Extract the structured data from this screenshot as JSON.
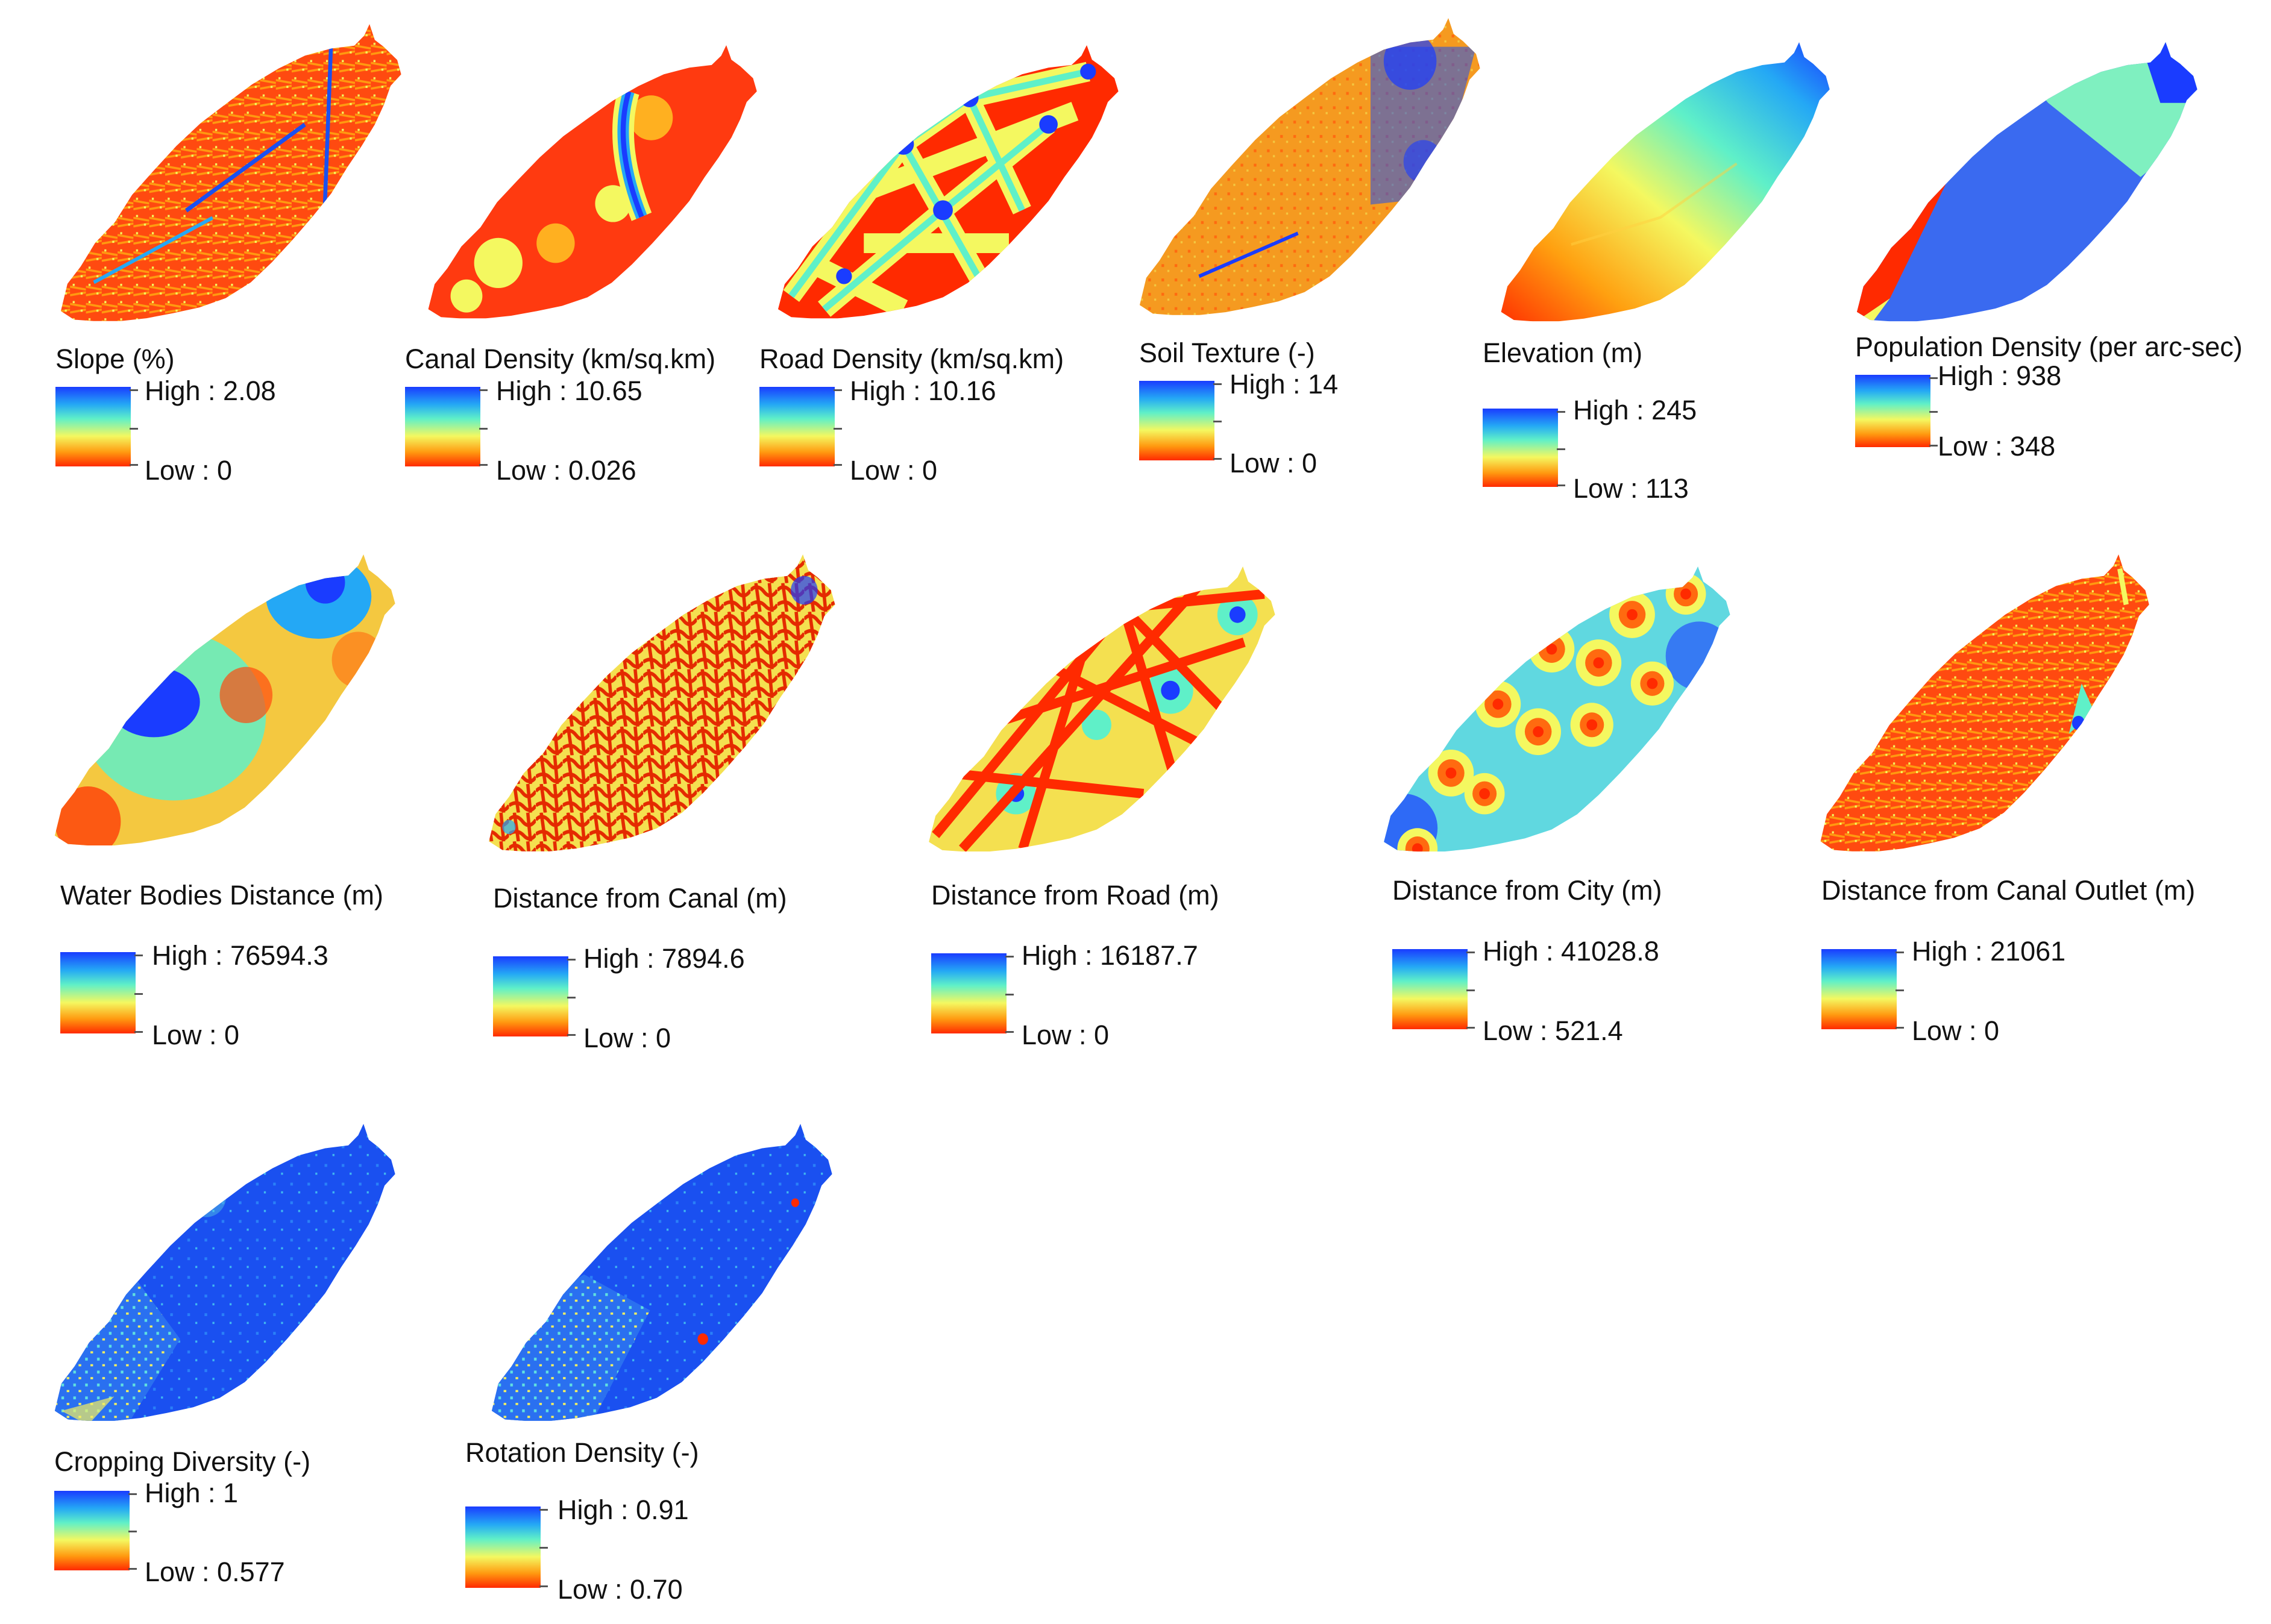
{
  "colors": {
    "ramp_high": "#1a3cff",
    "ramp_mid": "#5ff0c8",
    "ramp_yellow": "#f4f860",
    "ramp_low": "#ff2a00",
    "background": "#ffffff"
  },
  "maps": [
    {
      "id": "slope",
      "title": "Slope (%)",
      "high": "High : 2.08",
      "low": "Low : 0",
      "pattern": "Fine red-orange texture with scattered high values",
      "dominant": "#ff5a10"
    },
    {
      "id": "canal-density",
      "title": "Canal Density (km/sq.km)",
      "high": "High : 10.65",
      "low": "Low : 0.026",
      "pattern": "Mostly red with yellow patches and a blue canal strip",
      "dominant": "#ff3a10"
    },
    {
      "id": "road-density",
      "title": "Road Density (km/sq.km)",
      "high": "High : 10.16",
      "low": "Low : 0",
      "pattern": "Yellow road network with blue nodes over red",
      "dominant": "#ff2a00"
    },
    {
      "id": "soil-texture",
      "title": "Soil Texture (-)",
      "high": "High : 14",
      "low": "Low : 0",
      "pattern": "Orange texture with blue patches to the north-east",
      "dominant": "#f59a20"
    },
    {
      "id": "elevation",
      "title": "Elevation (m)",
      "high": "High : 245",
      "low": "Low : 113",
      "pattern": "Smooth gradient from red (south-west) to blue (north-east)",
      "dominant": "#e8f060"
    },
    {
      "id": "population-density",
      "title": "Population Density (per arc-sec)",
      "high": "High : 938",
      "low": "Low : 348",
      "pattern": "Large blue and cyan zones with red fringe",
      "dominant": "#3a6af0"
    },
    {
      "id": "water-bodies-distance",
      "title": "Water Bodies Distance (m)",
      "high": "High : 76594.3",
      "low": "Low : 0",
      "pattern": "Smooth distance field with blue and cyan zones",
      "dominant": "#f0e050"
    },
    {
      "id": "distance-from-canal",
      "title": "Distance from Canal (m)",
      "high": "High : 7894.6",
      "low": "Low : 0",
      "pattern": "Dense red canal network over yellow",
      "dominant": "#e84010"
    },
    {
      "id": "distance-from-road",
      "title": "Distance from Road (m)",
      "high": "High : 16187.7",
      "low": "Low : 0",
      "pattern": "Red straight roads with yellow-blue gaps",
      "dominant": "#f0d040"
    },
    {
      "id": "distance-from-city",
      "title": "Distance from City (m)",
      "high": "High : 41028.8",
      "low": "Low : 521.4",
      "pattern": "Red city buffers in cyan field",
      "dominant": "#60d8e0"
    },
    {
      "id": "distance-from-canal-outlet",
      "title": "Distance from Canal Outlet (m)",
      "high": "High : 21061",
      "low": "Low : 0",
      "pattern": "Mostly red-orange texture",
      "dominant": "#ff5a10"
    },
    {
      "id": "cropping-diversity",
      "title": "Cropping Diversity (-)",
      "high": "High : 1",
      "low": "Low : 0.577",
      "pattern": "Mostly blue with cyan and yellow speckles",
      "dominant": "#1a50f0"
    },
    {
      "id": "rotation-density",
      "title": "Rotation Density (-)",
      "high": "High : 0.91",
      "low": "Low : 0.70",
      "pattern": "Mostly blue with cyan speckles",
      "dominant": "#1a50f0"
    }
  ]
}
